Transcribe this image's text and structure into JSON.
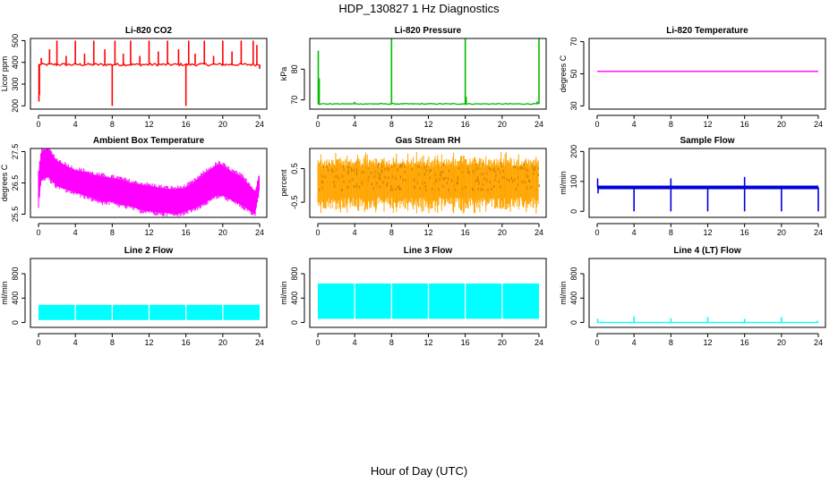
{
  "title": "HDP_130827  1 Hz Diagnostics",
  "xlabel": "Hour of Day (UTC)",
  "x_ticks": [
    "0",
    "4",
    "8",
    "12",
    "16",
    "20",
    "24"
  ],
  "chart_data": [
    {
      "type": "line",
      "title": "Li-820 CO2",
      "ylabel": "Licor ppm",
      "color": "#ff0000",
      "xlim": [
        0,
        24
      ],
      "ylim": [
        185,
        510
      ],
      "y_ticks": [
        200,
        300,
        400,
        500
      ],
      "series": [
        {
          "baseline": 390,
          "noise": 6,
          "spikes": [
            {
              "x": 0.05,
              "y": 220
            },
            {
              "x": 0.1,
              "y": 250
            },
            {
              "x": 0.3,
              "y": 420
            },
            {
              "x": 1.2,
              "y": 460
            },
            {
              "x": 2.0,
              "y": 500
            },
            {
              "x": 3.0,
              "y": 430
            },
            {
              "x": 4.0,
              "y": 500
            },
            {
              "x": 5.0,
              "y": 440
            },
            {
              "x": 6.0,
              "y": 500
            },
            {
              "x": 7.2,
              "y": 460
            },
            {
              "x": 8.0,
              "y": 200
            },
            {
              "x": 8.3,
              "y": 500
            },
            {
              "x": 9.2,
              "y": 440
            },
            {
              "x": 10.0,
              "y": 500
            },
            {
              "x": 11.0,
              "y": 430
            },
            {
              "x": 12.0,
              "y": 500
            },
            {
              "x": 13.0,
              "y": 450
            },
            {
              "x": 14.0,
              "y": 500
            },
            {
              "x": 15.2,
              "y": 460
            },
            {
              "x": 16.0,
              "y": 200
            },
            {
              "x": 16.3,
              "y": 500
            },
            {
              "x": 17.0,
              "y": 440
            },
            {
              "x": 18.0,
              "y": 500
            },
            {
              "x": 19.0,
              "y": 430
            },
            {
              "x": 20.0,
              "y": 500
            },
            {
              "x": 21.0,
              "y": 450
            },
            {
              "x": 22.0,
              "y": 500
            },
            {
              "x": 23.3,
              "y": 500
            },
            {
              "x": 23.7,
              "y": 480
            },
            {
              "x": 24.0,
              "y": 370
            }
          ]
        }
      ]
    },
    {
      "type": "line",
      "title": "Li-820 Pressure",
      "ylabel": "kPa",
      "color": "#00bb00",
      "xlim": [
        0,
        24
      ],
      "ylim": [
        67,
        90
      ],
      "y_ticks": [
        70,
        80
      ],
      "series": [
        {
          "baseline": 68.7,
          "noise": 0.15,
          "spikes": [
            {
              "x": 0.05,
              "y": 86
            },
            {
              "x": 0.15,
              "y": 77
            },
            {
              "x": 4.0,
              "y": 69.4
            },
            {
              "x": 8.0,
              "y": 90
            },
            {
              "x": 16.0,
              "y": 90
            },
            {
              "x": 16.1,
              "y": 71
            },
            {
              "x": 24.0,
              "y": 90
            },
            {
              "x": 23.8,
              "y": 69.5
            }
          ]
        }
      ]
    },
    {
      "type": "line",
      "title": "Li-820 Temperature",
      "ylabel": "degrees C",
      "color": "#ff00ff",
      "xlim": [
        0,
        24
      ],
      "ylim": [
        28,
        72
      ],
      "y_ticks": [
        30,
        50,
        70
      ],
      "series": [
        {
          "baseline": 51.5,
          "noise": 0,
          "spikes": []
        }
      ]
    },
    {
      "type": "area",
      "title": "Ambient Box Temperature",
      "ylabel": "degrees C",
      "color": "#ff00ff",
      "xlim": [
        0,
        24
      ],
      "ylim": [
        25.4,
        27.6
      ],
      "y_ticks": [
        25.5,
        26.5,
        27.5
      ],
      "series": [
        {
          "x": [
            0,
            0.3,
            1,
            2,
            3,
            4,
            5,
            6,
            7,
            8,
            9,
            10,
            11,
            12,
            13,
            14,
            15,
            16,
            17,
            18,
            19,
            19.5,
            20,
            21,
            22,
            23,
            23.5,
            24
          ],
          "low": [
            25.8,
            26.6,
            26.7,
            26.4,
            26.3,
            26.2,
            26.1,
            26.0,
            25.9,
            25.9,
            25.8,
            25.75,
            25.65,
            25.6,
            25.55,
            25.55,
            25.5,
            25.6,
            25.7,
            25.85,
            26.05,
            26.1,
            26.1,
            25.95,
            25.8,
            25.6,
            25.5,
            26.3
          ],
          "high": [
            26.8,
            27.5,
            27.6,
            27.2,
            27.05,
            26.9,
            26.85,
            26.75,
            26.7,
            26.65,
            26.6,
            26.5,
            26.45,
            26.4,
            26.35,
            26.3,
            26.3,
            26.35,
            26.55,
            26.8,
            27.0,
            27.1,
            27.05,
            26.85,
            26.7,
            26.4,
            26.2,
            26.8
          ]
        }
      ]
    },
    {
      "type": "area",
      "title": "Gas Stream RH",
      "ylabel": "percent",
      "color": "#ffa500",
      "color2": "#cc8400",
      "xlim": [
        0,
        24
      ],
      "ylim": [
        -0.95,
        1.1
      ],
      "y_ticks": [
        -0.5,
        0.5
      ],
      "series": [
        {
          "low": -0.7,
          "high": 0.8,
          "core_low": -0.1,
          "core_high": 0.7
        }
      ]
    },
    {
      "type": "line",
      "title": "Sample Flow",
      "ylabel": "ml/min",
      "color": "#0000dd",
      "xlim": [
        0,
        24
      ],
      "ylim": [
        -20,
        210
      ],
      "y_ticks": [
        0,
        100,
        200
      ],
      "series": [
        {
          "baseline": 80,
          "band": 6,
          "spikes": [
            {
              "x": 0.05,
              "y": 110
            },
            {
              "x": 0.1,
              "y": 60
            },
            {
              "x": 4.0,
              "y": 0
            },
            {
              "x": 8.0,
              "y": 110
            },
            {
              "x": 8.0,
              "y": 0
            },
            {
              "x": 12.0,
              "y": 0
            },
            {
              "x": 16.0,
              "y": 115
            },
            {
              "x": 16.0,
              "y": 0
            },
            {
              "x": 20.0,
              "y": 0
            },
            {
              "x": 24.0,
              "y": 0
            }
          ]
        }
      ]
    },
    {
      "type": "area",
      "title": "Line 2 Flow",
      "ylabel": "ml/min",
      "color": "#00ffff",
      "xlim": [
        0,
        24
      ],
      "ylim": [
        -80,
        1050
      ],
      "y_ticks": [
        0,
        400,
        800
      ],
      "series": [
        {
          "low": 40,
          "high": 290,
          "gaps": [
            4,
            8,
            12,
            16,
            20
          ]
        }
      ]
    },
    {
      "type": "area",
      "title": "Line 3 Flow",
      "ylabel": "ml/min",
      "color": "#00ffff",
      "xlim": [
        0,
        24
      ],
      "ylim": [
        -80,
        1050
      ],
      "y_ticks": [
        0,
        400,
        800
      ],
      "series": [
        {
          "low": 60,
          "high": 640,
          "gaps": [
            4,
            8,
            12,
            16,
            20
          ]
        }
      ]
    },
    {
      "type": "line",
      "title": "Line 4 (LT) Flow",
      "ylabel": "ml/min",
      "color": "#00ffff",
      "xlim": [
        0,
        24
      ],
      "ylim": [
        -80,
        1050
      ],
      "y_ticks": [
        0,
        400,
        800
      ],
      "series": [
        {
          "baseline": 0,
          "noise": 0,
          "spikes": [
            {
              "x": 0.05,
              "y": 60
            },
            {
              "x": 4.0,
              "y": 100
            },
            {
              "x": 8.0,
              "y": 70
            },
            {
              "x": 12.0,
              "y": 90
            },
            {
              "x": 16.0,
              "y": 60
            },
            {
              "x": 20.0,
              "y": 90
            },
            {
              "x": 23.9,
              "y": 30
            }
          ]
        }
      ]
    }
  ]
}
